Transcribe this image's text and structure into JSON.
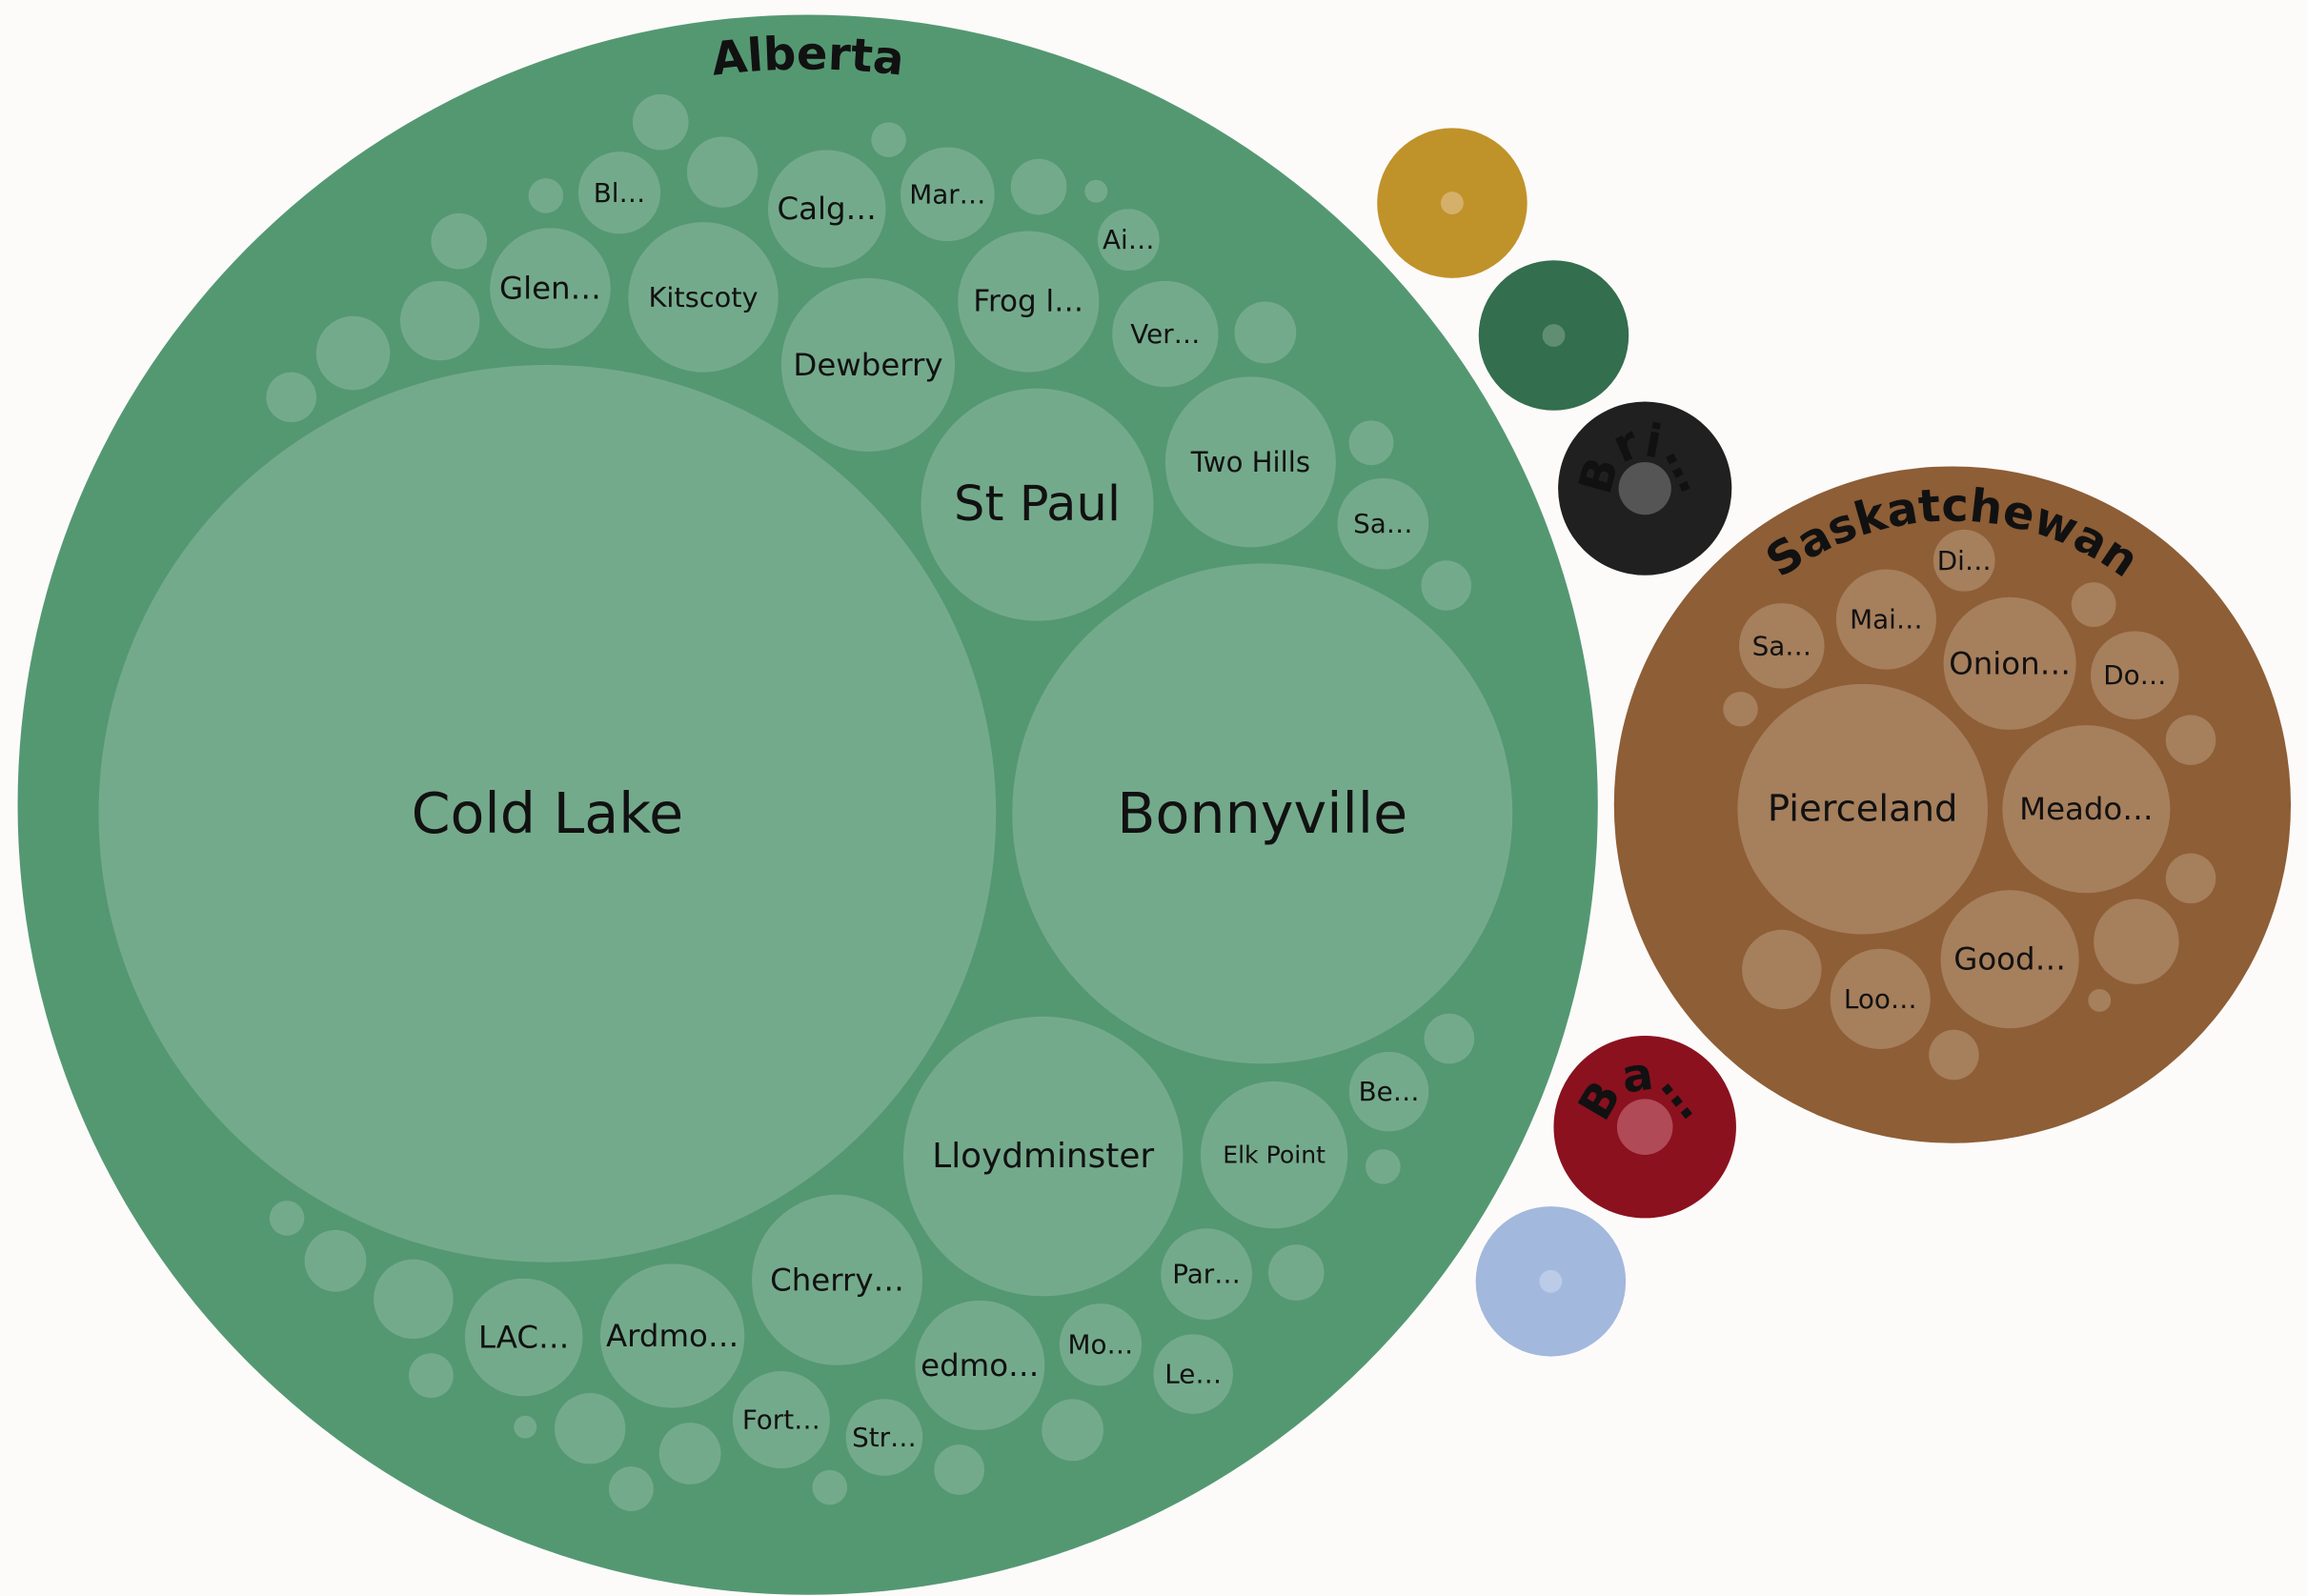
{
  "chart_data": {
    "type": "pack",
    "groups": [
      {
        "name": "Alberta",
        "color": "#549872",
        "child_color": "#74aa8c",
        "names": [
          "Cold Lake",
          "Bonnyville",
          "Lloydminster",
          "St Paul",
          "Two Hills",
          "Dewberry",
          "Kitscoty",
          "Frog l…",
          "Glen…",
          "Calg…",
          "Mar…",
          "Bl…",
          "Ai…",
          "Ver…",
          "Sa…",
          "Be…",
          "Elk Point",
          "Par…",
          "Mo…",
          "Le…",
          "edmo…",
          "Cherry…",
          "Ardmo…",
          "LAC…",
          "Fort…",
          "Str…",
          null,
          null,
          null,
          null,
          null,
          null,
          null,
          null,
          null,
          null,
          null,
          null,
          null,
          null,
          null,
          null,
          null,
          null,
          null,
          null,
          null,
          null,
          null,
          null,
          null,
          null,
          null
        ],
        "values": [
          930,
          289,
          90.3,
          62.4,
          33.6,
          34.8,
          26,
          23,
          16.8,
          16,
          10.2,
          7.8,
          4.4,
          13,
          9.6,
          7.3,
          25,
          9.6,
          7.8,
          7.3,
          19.4,
          33.6,
          24,
          16,
          10.9,
          6.8,
          3.6,
          5.8,
          1.4,
          3.6,
          0.6,
          1.4,
          3.6,
          7.3,
          6.3,
          2.9,
          4.4,
          2.3,
          2.9,
          2.9,
          1.4,
          3.6,
          4.4,
          2.9,
          1.4,
          4.4,
          2.3,
          5.8,
          0.6,
          2.3,
          7.3,
          4.4,
          1.4
        ]
      },
      {
        "name": null,
        "color": "#c0922a",
        "child_color": "#d4b06a",
        "names": [
          null
        ],
        "values": [
          0.6
        ]
      },
      {
        "name": null,
        "color": "#336e4e",
        "child_color": "#5f8e73",
        "names": [
          null
        ],
        "values": [
          0.6
        ]
      },
      {
        "name": "Bri…",
        "color": "#202020",
        "child_color": "#555555",
        "names": [
          null
        ],
        "values": [
          3.2
        ]
      },
      {
        "name": "Saskatchewan",
        "color": "#8e5e36",
        "child_color": "#a67f5c",
        "names": [
          "Pierceland",
          "Meado…",
          "Good…",
          "Onion…",
          "Loo…",
          "Mai…",
          "Do…",
          "Sa…",
          "Di…",
          null,
          null,
          null,
          null,
          null,
          null,
          null,
          null
        ],
        "values": [
          72.3,
          32.5,
          22.1,
          20.3,
          11.6,
          11.6,
          9,
          8.4,
          4.4,
          7.3,
          8.4,
          2.9,
          2.9,
          2.3,
          1.4,
          2.9,
          0.6
        ]
      },
      {
        "name": "Ba…",
        "color": "#8b111f",
        "child_color": "#b04a56",
        "names": [
          null
        ],
        "values": [
          3.6
        ]
      },
      {
        "name": null,
        "color": "#a3b8dd",
        "child_color": "#bccbe7",
        "names": [
          null
        ],
        "values": [
          0.6
        ]
      }
    ]
  }
}
